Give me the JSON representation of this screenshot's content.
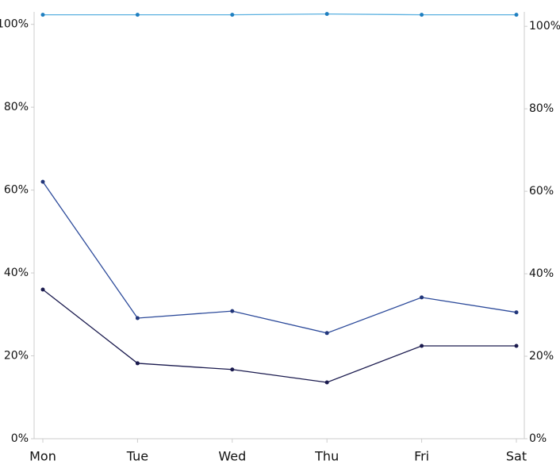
{
  "chart_data": {
    "type": "line",
    "categories": [
      "Mon",
      "Tue",
      "Wed",
      "Thu",
      "Fri",
      "Sat"
    ],
    "series": [
      {
        "color": "#5ab0e0",
        "dot_color": "#1f7fc0",
        "values": [
          102.3,
          102.3,
          102.3,
          102.5,
          102.3,
          102.3
        ]
      },
      {
        "color": "#2c4a9a",
        "dot_color": "#22367a",
        "values": [
          62,
          29.1,
          30.8,
          25.5,
          34.1,
          30.5
        ]
      },
      {
        "color": "#1a1a4e",
        "dot_color": "#1a1a4e",
        "values": [
          36,
          18.2,
          16.7,
          13.6,
          22.4,
          22.4
        ]
      }
    ],
    "ylim": [
      0,
      103
    ],
    "yticks": [
      {
        "value": 0,
        "label": "0%"
      },
      {
        "value": 20,
        "label": "20%"
      },
      {
        "value": 40,
        "label": "40%"
      },
      {
        "value": 60,
        "label": "60%"
      },
      {
        "value": 80,
        "label": "80%"
      },
      {
        "value": 100,
        "label": "100%"
      }
    ],
    "y2lim": [
      0,
      103.5
    ],
    "y2ticks": [
      {
        "value": 0,
        "label": "0%"
      },
      {
        "value": 20,
        "label": "20%"
      },
      {
        "value": 40,
        "label": "40%"
      },
      {
        "value": 60,
        "label": "60%"
      },
      {
        "value": 80,
        "label": "80%"
      },
      {
        "value": 100,
        "label": "100%"
      }
    ],
    "grid": false
  }
}
